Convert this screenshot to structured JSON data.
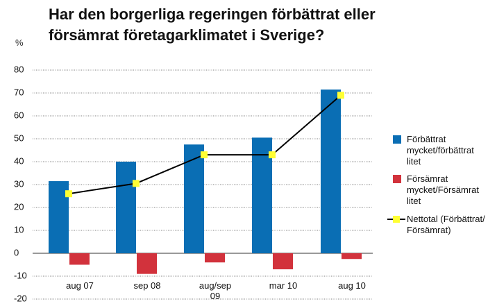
{
  "chart_data": {
    "type": "bar",
    "title": "Har den borgerliga regeringen förbättrat eller försämrat företagarklimatet i Sverige?",
    "y_label": "%",
    "categories": [
      "aug 07",
      "sep 08",
      "aug/sep 09",
      "mar 10",
      "aug 10"
    ],
    "series": [
      {
        "name": "Förbättrat mycket/förbätt­rat litet",
        "color": "#0a6eb4",
        "type": "bar",
        "values": [
          31.5,
          40,
          47.5,
          50.5,
          71.5
        ]
      },
      {
        "name": "Försämrat mycket/För­sämrat litet",
        "color": "#d2323c",
        "type": "bar",
        "values": [
          -5,
          -9,
          -4,
          -7,
          -2.5
        ]
      },
      {
        "name": "Nettotal (Förbättrat/ Försämrat)",
        "color": "#ffff33",
        "type": "line",
        "values": [
          26,
          30.5,
          43,
          43,
          69
        ]
      }
    ],
    "ylim": [
      -20,
      80
    ],
    "yticks": [
      -20,
      -10,
      0,
      10,
      20,
      30,
      40,
      50,
      60,
      70,
      80
    ],
    "grid": true
  }
}
